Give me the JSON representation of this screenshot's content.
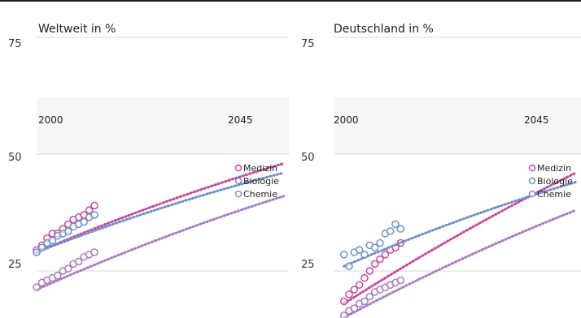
{
  "colors": {
    "Medizin": "#c8489b",
    "Biologie": "#6f8fc8",
    "Chemie": "#a87ac2",
    "grid": "#d9d9d9"
  },
  "chart_data": [
    {
      "type": "scatter",
      "title": "Weltweit in %",
      "ylim": [
        20,
        75
      ],
      "y_ticks": [
        25,
        50,
        75
      ],
      "xlim": [
        1998,
        2046
      ],
      "x_labels": [
        {
          "label": "2000",
          "x": 2000
        },
        {
          "label": "2045",
          "x": 2045
        }
      ],
      "legend": [
        "Medizin",
        "Biologie",
        "Chemie"
      ],
      "series": [
        {
          "name": "Medizin",
          "observed_x": [
            1998,
            1999,
            2000,
            2001,
            2002,
            2003,
            2004,
            2005,
            2006,
            2007,
            2008,
            2009
          ],
          "observed": [
            29.5,
            30.5,
            32,
            33,
            33,
            34,
            35,
            36,
            36.5,
            37,
            38,
            39
          ],
          "trend_x": [
            1998,
            2045
          ],
          "trend_curve": [
            29,
            48
          ]
        },
        {
          "name": "Biologie",
          "observed_x": [
            1998,
            1999,
            2000,
            2001,
            2002,
            2003,
            2004,
            2005,
            2006,
            2007,
            2008,
            2009
          ],
          "observed": [
            29,
            30,
            31,
            31.5,
            32.5,
            33,
            33.5,
            34.5,
            35,
            35.5,
            36.5,
            37
          ],
          "trend_x": [
            1998,
            2045
          ],
          "trend_curve": [
            29,
            46
          ]
        },
        {
          "name": "Chemie",
          "observed_x": [
            1998,
            1999,
            2000,
            2001,
            2002,
            2003,
            2004,
            2005,
            2006,
            2007,
            2008,
            2009
          ],
          "observed": [
            21.5,
            22.5,
            23,
            23.5,
            24,
            25,
            25.5,
            26.5,
            27,
            28,
            28.5,
            29
          ],
          "trend_x": [
            1998,
            2045
          ],
          "trend_curve": [
            21,
            41
          ]
        }
      ]
    },
    {
      "type": "scatter",
      "title": "Deutschland in %",
      "ylim": [
        20,
        75
      ],
      "y_ticks": [
        25,
        50,
        75
      ],
      "xlim": [
        1998,
        2046
      ],
      "x_labels": [
        {
          "label": "2000",
          "x": 2000
        },
        {
          "label": "2045",
          "x": 2045
        }
      ],
      "legend": [
        "Medizin",
        "Biologie",
        "Chemie"
      ],
      "series": [
        {
          "name": "Medizin",
          "observed_x": [
            2000,
            2001,
            2002,
            2003,
            2004,
            2005,
            2006,
            2007,
            2008,
            2009,
            2010,
            2011
          ],
          "observed": [
            18.5,
            20,
            21,
            22,
            23.5,
            25,
            26.5,
            27.5,
            28.5,
            29.5,
            30,
            31
          ],
          "trend_x": [
            2000,
            2045
          ],
          "trend_curve": [
            18,
            46
          ]
        },
        {
          "name": "Biologie",
          "observed_x": [
            2000,
            2001,
            2002,
            2003,
            2004,
            2005,
            2006,
            2007,
            2008,
            2009,
            2010,
            2011
          ],
          "observed": [
            28.5,
            26,
            29,
            29.5,
            28.5,
            30.5,
            30,
            31,
            33,
            33.5,
            35,
            34
          ],
          "trend_x": [
            2000,
            2045
          ],
          "trend_curve": [
            26,
            44
          ]
        },
        {
          "name": "Chemie",
          "observed_x": [
            2000,
            2001,
            2002,
            2003,
            2004,
            2005,
            2006,
            2007,
            2008,
            2009,
            2010,
            2011
          ],
          "observed": [
            15.5,
            16.5,
            17,
            18,
            18.5,
            19.5,
            20.5,
            21,
            21.5,
            22,
            22.5,
            23
          ],
          "trend_x": [
            2000,
            2045
          ],
          "trend_curve": [
            15,
            38
          ]
        }
      ]
    }
  ]
}
